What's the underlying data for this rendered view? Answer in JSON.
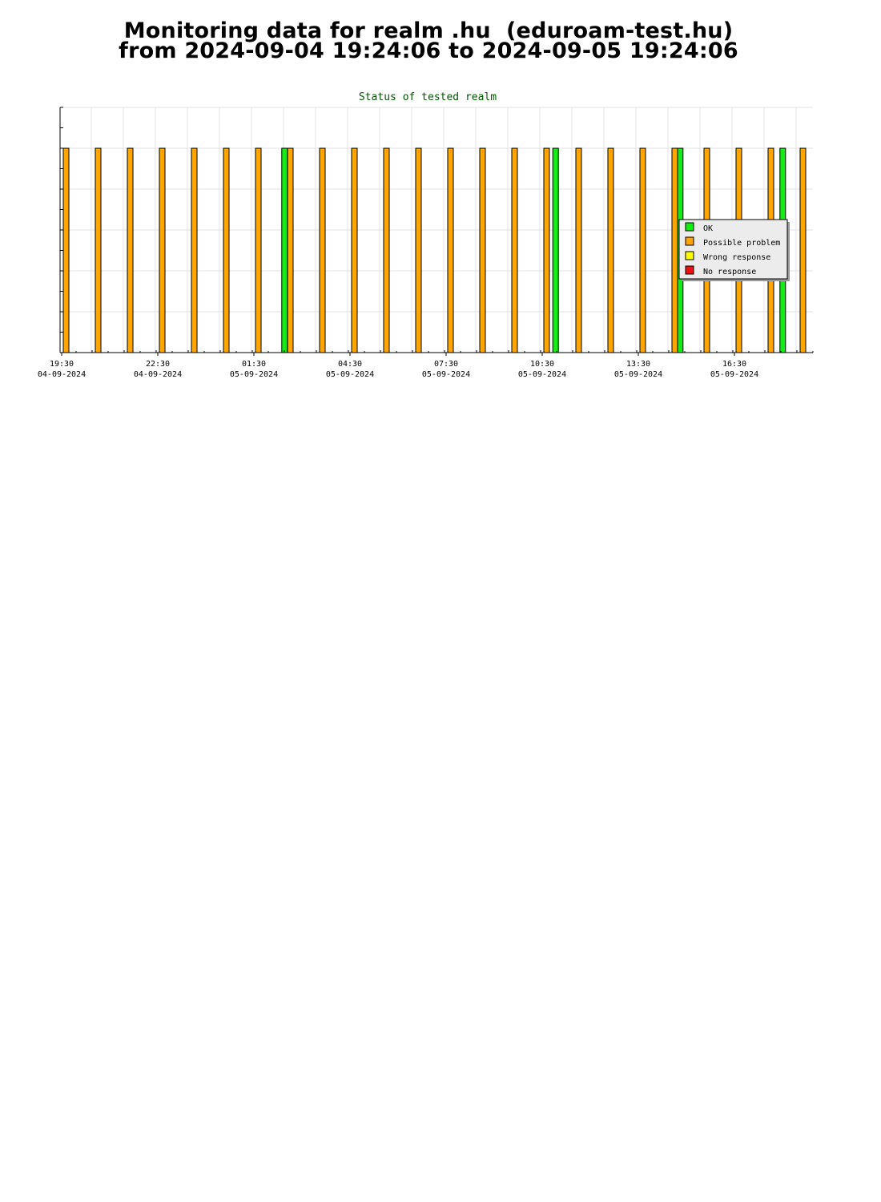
{
  "header": {
    "line1": "Monitoring data for realm .hu  (eduroam-test.hu)",
    "line2": "from 2024-09-04 19:24:06 to 2024-09-05 19:24:06"
  },
  "chart_data": {
    "type": "bar",
    "title": "Status of tested realm",
    "xlabel": "",
    "ylabel": "",
    "x_range_hours": [
      0,
      23.5
    ],
    "y_range": [
      0,
      6
    ],
    "grid": true,
    "legend_position": "right",
    "x_ticks": [
      {
        "time": "19:30",
        "date": "04-09-2024",
        "hour": 0
      },
      {
        "time": "22:30",
        "date": "04-09-2024",
        "hour": 3
      },
      {
        "time": "01:30",
        "date": "05-09-2024",
        "hour": 6
      },
      {
        "time": "04:30",
        "date": "05-09-2024",
        "hour": 9
      },
      {
        "time": "07:30",
        "date": "05-09-2024",
        "hour": 12
      },
      {
        "time": "10:30",
        "date": "05-09-2024",
        "hour": 15
      },
      {
        "time": "13:30",
        "date": "05-09-2024",
        "hour": 18
      },
      {
        "time": "16:30",
        "date": "05-09-2024",
        "hour": 21
      }
    ],
    "series": [
      {
        "name": "OK",
        "color": "#11ee11",
        "points": [
          {
            "hour": 6.92,
            "value": 5
          },
          {
            "hour": 15.38,
            "value": 5
          },
          {
            "hour": 19.27,
            "value": 5
          },
          {
            "hour": 22.47,
            "value": 5
          }
        ]
      },
      {
        "name": "Possible problem",
        "color": "#ffa500",
        "points": [
          {
            "hour": 0.1,
            "value": 5
          },
          {
            "hour": 1.1,
            "value": 5
          },
          {
            "hour": 2.1,
            "value": 5
          },
          {
            "hour": 3.1,
            "value": 5
          },
          {
            "hour": 4.1,
            "value": 5
          },
          {
            "hour": 5.1,
            "value": 5
          },
          {
            "hour": 6.1,
            "value": 5
          },
          {
            "hour": 7.1,
            "value": 5
          },
          {
            "hour": 8.1,
            "value": 5
          },
          {
            "hour": 9.1,
            "value": 5
          },
          {
            "hour": 10.1,
            "value": 5
          },
          {
            "hour": 11.1,
            "value": 5
          },
          {
            "hour": 12.1,
            "value": 5
          },
          {
            "hour": 13.1,
            "value": 5
          },
          {
            "hour": 14.1,
            "value": 5
          },
          {
            "hour": 15.1,
            "value": 5
          },
          {
            "hour": 16.1,
            "value": 5
          },
          {
            "hour": 17.1,
            "value": 5
          },
          {
            "hour": 18.1,
            "value": 5
          },
          {
            "hour": 19.1,
            "value": 5
          },
          {
            "hour": 20.1,
            "value": 5
          },
          {
            "hour": 21.1,
            "value": 5
          },
          {
            "hour": 22.1,
            "value": 5
          },
          {
            "hour": 23.1,
            "value": 5
          }
        ]
      },
      {
        "name": "Wrong response",
        "color": "#ffff00",
        "points": []
      },
      {
        "name": "No response",
        "color": "#ee1111",
        "points": []
      }
    ]
  }
}
